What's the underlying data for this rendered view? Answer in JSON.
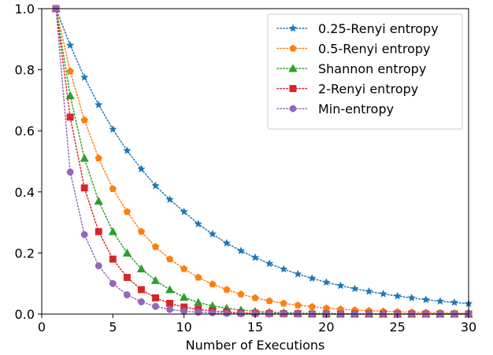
{
  "chart_data": {
    "type": "line",
    "title": "",
    "xlabel": "Number of Executions",
    "ylabel": "",
    "xlim": [
      0,
      30
    ],
    "ylim": [
      0,
      1.0
    ],
    "xticks": [
      0,
      5,
      10,
      15,
      20,
      25,
      30
    ],
    "yticks": [
      0.0,
      0.2,
      0.4,
      0.6,
      0.8,
      1.0
    ],
    "xtick_labels": [
      "0",
      "5",
      "10",
      "15",
      "20",
      "25",
      "30"
    ],
    "ytick_labels": [
      "0.0",
      "0.2",
      "0.4",
      "0.6",
      "0.8",
      "1.0"
    ],
    "grid": false,
    "legend_position": "top-right",
    "x": [
      1,
      2,
      3,
      4,
      5,
      6,
      7,
      8,
      9,
      10,
      11,
      12,
      13,
      14,
      15,
      16,
      17,
      18,
      19,
      20,
      21,
      22,
      23,
      24,
      25,
      26,
      27,
      28,
      29,
      30
    ],
    "series": [
      {
        "name": "0.25-Renyi entropy",
        "color": "#1f77b4",
        "marker": "star",
        "values": [
          1.0,
          0.88,
          0.775,
          0.685,
          0.605,
          0.535,
          0.475,
          0.42,
          0.375,
          0.335,
          0.295,
          0.262,
          0.232,
          0.207,
          0.185,
          0.165,
          0.147,
          0.131,
          0.117,
          0.104,
          0.093,
          0.083,
          0.074,
          0.066,
          0.059,
          0.053,
          0.047,
          0.042,
          0.038,
          0.034
        ]
      },
      {
        "name": "0.5-Renyi entropy",
        "color": "#ff7f0e",
        "marker": "pentagon",
        "values": [
          1.0,
          0.795,
          0.635,
          0.51,
          0.41,
          0.335,
          0.27,
          0.22,
          0.18,
          0.148,
          0.12,
          0.098,
          0.08,
          0.065,
          0.053,
          0.043,
          0.035,
          0.029,
          0.024,
          0.019,
          0.016,
          0.013,
          0.011,
          0.009,
          0.007,
          0.006,
          0.005,
          0.004,
          0.003,
          0.003
        ]
      },
      {
        "name": "Shannon entropy",
        "color": "#2ca02c",
        "marker": "triangle",
        "values": [
          1.0,
          0.715,
          0.51,
          0.37,
          0.27,
          0.2,
          0.148,
          0.11,
          0.08,
          0.055,
          0.038,
          0.027,
          0.019,
          0.013,
          0.009,
          0.006,
          0.005,
          0.003,
          0.002,
          0.002,
          0.001,
          0.001,
          0.001,
          0.0,
          0.0,
          0.0,
          0.0,
          0.0,
          0.0,
          0.0
        ]
      },
      {
        "name": "2-Renyi entropy",
        "color": "#d62728",
        "marker": "square",
        "values": [
          1.0,
          0.645,
          0.413,
          0.27,
          0.18,
          0.12,
          0.08,
          0.053,
          0.035,
          0.023,
          0.015,
          0.01,
          0.007,
          0.004,
          0.003,
          0.002,
          0.001,
          0.001,
          0.0,
          0.0,
          0.0,
          0.0,
          0.0,
          0.0,
          0.0,
          0.0,
          0.0,
          0.0,
          0.0,
          0.0
        ]
      },
      {
        "name": "Min-entropy",
        "color": "#9467bd",
        "marker": "circle",
        "values": [
          1.0,
          0.465,
          0.26,
          0.158,
          0.1,
          0.063,
          0.04,
          0.025,
          0.015,
          0.009,
          0.006,
          0.004,
          0.002,
          0.001,
          0.001,
          0.0,
          0.0,
          0.0,
          0.0,
          0.0,
          0.0,
          0.0,
          0.0,
          0.0,
          0.0,
          0.0,
          0.0,
          0.0,
          0.0,
          0.0
        ]
      }
    ]
  }
}
